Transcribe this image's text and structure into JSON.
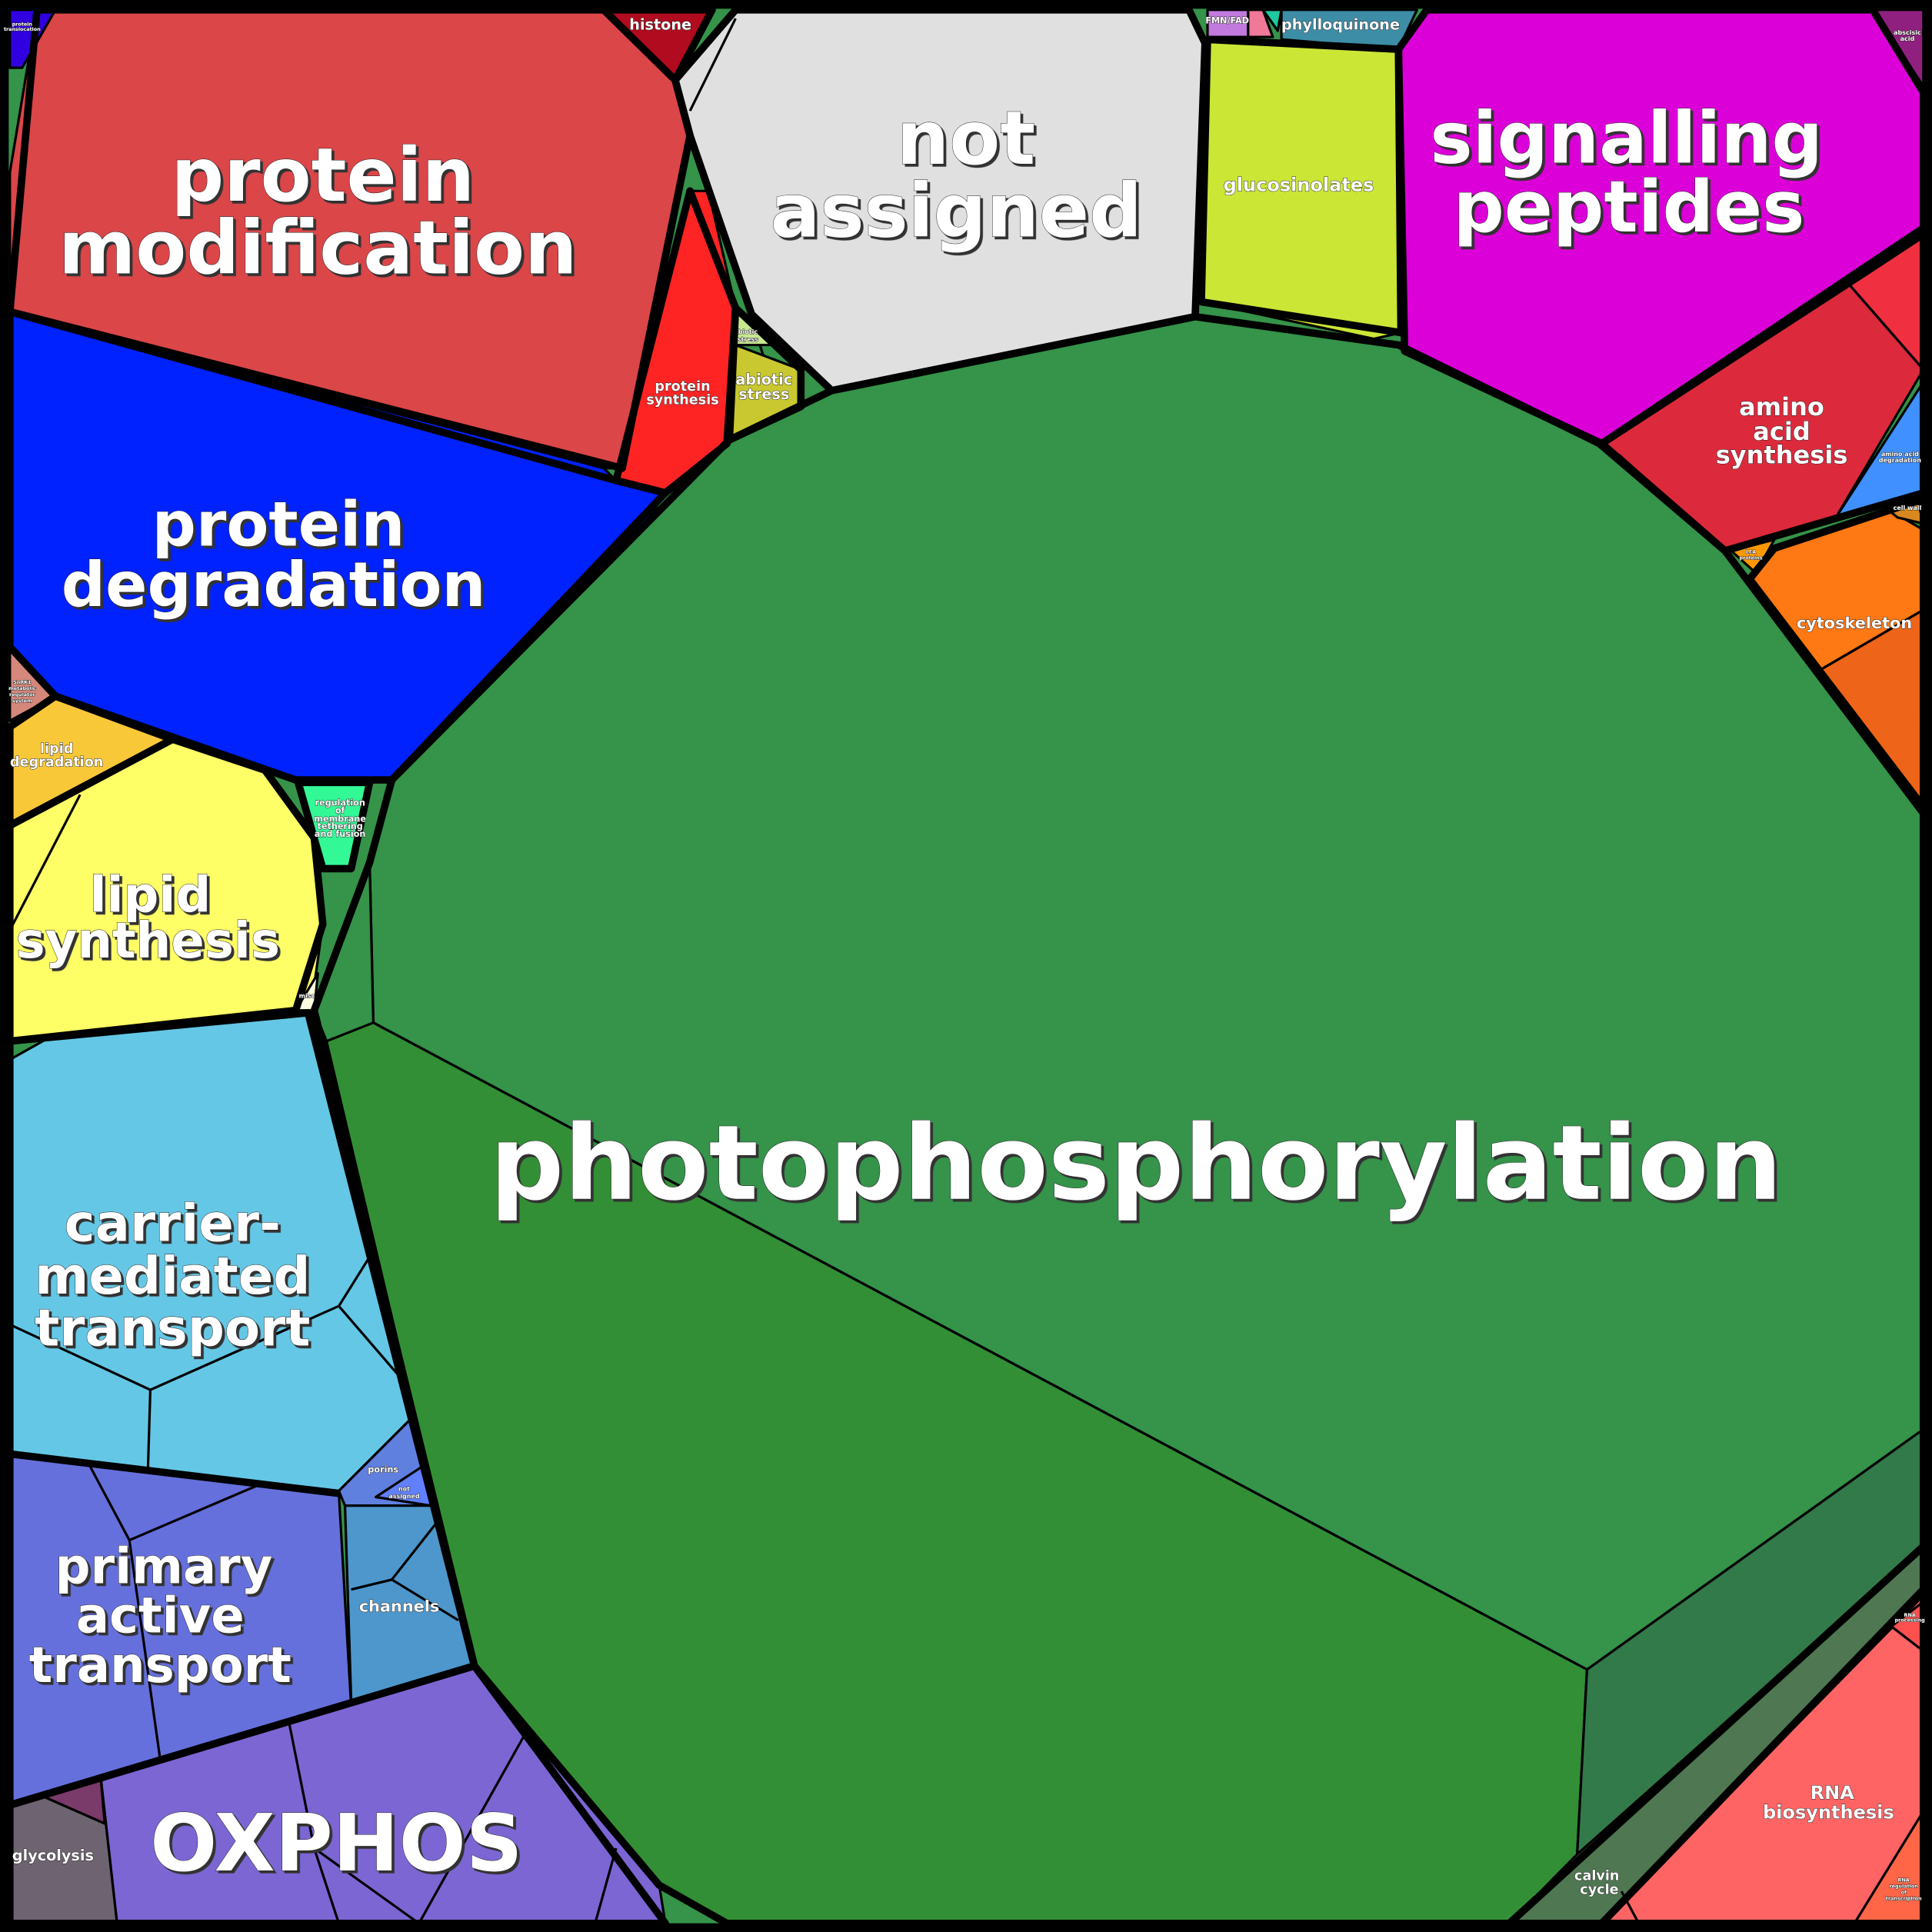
{
  "labels": {
    "photophosphorylation": [
      "photophosphorylation"
    ],
    "protein_modification": [
      "protein",
      "modification"
    ],
    "not_assigned": [
      "not",
      "assigned"
    ],
    "signalling_peptides": [
      "signalling",
      "peptides"
    ],
    "protein_degradation": [
      "protein",
      "degradation"
    ],
    "lipid_synthesis": [
      "lipid",
      "synthesis"
    ],
    "carrier_mediated_transport": [
      "carrier-",
      "mediated",
      "transport"
    ],
    "primary_active_transport": [
      "primary",
      "active",
      "transport"
    ],
    "oxphos": [
      "OXPHOS"
    ],
    "amino_acid_synthesis": [
      "amino",
      "acid",
      "synthesis"
    ],
    "cytoskeleton": [
      "cytoskeleton"
    ],
    "rna_biosynthesis": [
      "RNA",
      "biosynthesis"
    ],
    "glucosinolates": [
      "glucosinolates"
    ],
    "phylloquinone": [
      "phylloquinone"
    ],
    "histone": [
      "histone"
    ],
    "protein_synthesis": [
      "protein",
      "synthesis"
    ],
    "abiotic_stress": [
      "abiotic",
      "stress"
    ],
    "biotic_stress": [
      "biotic",
      "stress"
    ],
    "lipid_degradation": [
      "lipid",
      "degradation"
    ],
    "channels": [
      "channels"
    ],
    "glycolysis": [
      "glycolysis"
    ],
    "calvin_cycle": [
      "calvin",
      "cycle"
    ],
    "porins": [
      "porins"
    ],
    "not_assigned_small": [
      "not",
      "assigned"
    ],
    "fmn_fad": [
      "FMN/FAD"
    ],
    "abscisic_acid": [
      "abscisic",
      "acid"
    ],
    "amino_acid_degradation": [
      "amino acid",
      "degradation"
    ],
    "cell_wall": [
      "cell wall"
    ],
    "lea_proteins": [
      "LEA",
      "proteins"
    ],
    "regulation_membrane": [
      "regulation",
      "of",
      "membrane",
      "tethering",
      "and fusion"
    ],
    "snrk1": [
      "SnRK1",
      "metabolic",
      "regulator",
      "system"
    ],
    "protein_translocation": [
      "protein",
      "translocation"
    ],
    "rna_regulation": [
      "RNA",
      "regulation",
      "of",
      "transcription"
    ],
    "rna_processing": [
      "RNA",
      "processing"
    ],
    "misc": [
      "misc"
    ]
  },
  "colors": {
    "photophosphorylation": "#35934a",
    "photophosphorylation_sub": "#338f35",
    "photophosphorylation_dark": "#337a4a",
    "calvin_cycle": "#4e7752",
    "protein_modification": "#db4649",
    "not_assigned": "#e0e0e0",
    "signalling_peptides": "#dc00d8",
    "protein_degradation": "#0022ff",
    "lipid_synthesis": "#fefe66",
    "carrier_mediated_transport": "#65c7e6",
    "primary_active_transport": "#6670dc",
    "oxphos": "#7c66d4",
    "amino_acid_synthesis": "#dc2a3c",
    "cytoskeleton": "#fe7814",
    "rna_biosynthesis": "#fe6464",
    "glucosinolates": "#cbe635",
    "phylloquinone": "#3d8da6",
    "histone": "#b00b1e",
    "protein_synthesis": "#ff2424",
    "abiotic_stress": "#c9c830",
    "lipid_degradation": "#f9c839",
    "channels": "#4e97cc",
    "glycolysis": "#6e6370",
    "regulation_membrane": "#33f896"
  }
}
